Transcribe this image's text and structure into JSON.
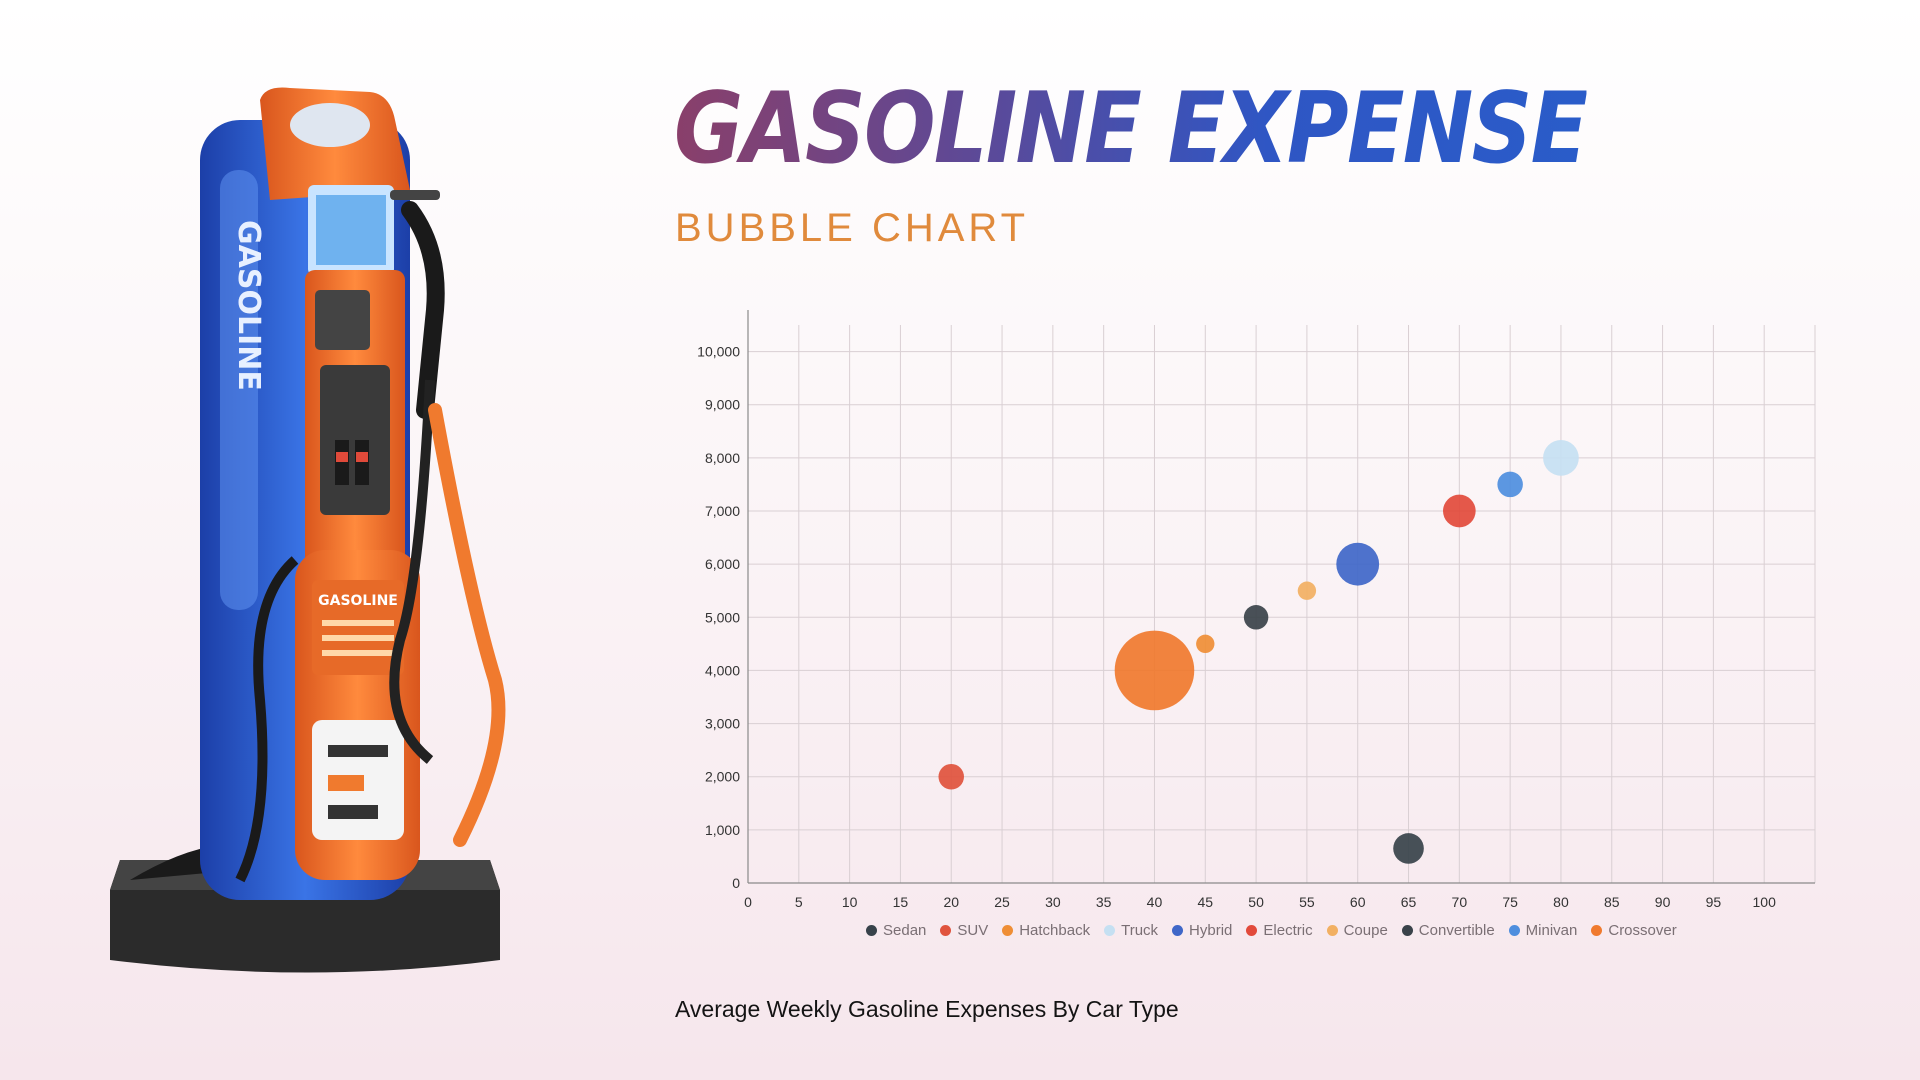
{
  "header": {
    "title": "GASOLINE EXPENSE",
    "subtitle": "BUBBLE CHART"
  },
  "caption": "Average Weekly Gasoline Expenses By Car Type",
  "illustration": {
    "icon": "gas-pump-icon",
    "colors": {
      "body": "#2a5cc9",
      "panel": "#f07a2e",
      "base": "#2b2b2b"
    }
  },
  "chart_data": {
    "type": "scatter",
    "subtype": "bubble",
    "xlim": [
      0,
      105
    ],
    "ylim": [
      0,
      10500
    ],
    "x_ticks": [
      "0",
      "5",
      "10",
      "15",
      "20",
      "25",
      "30",
      "35",
      "40",
      "45",
      "50",
      "55",
      "60",
      "65",
      "70",
      "75",
      "80",
      "85",
      "90",
      "95",
      "100"
    ],
    "y_ticks": [
      "0",
      "1,000",
      "2,000",
      "3,000",
      "4,000",
      "5,000",
      "6,000",
      "7,000",
      "8,000",
      "9,000",
      "10,000"
    ],
    "grid": true,
    "legend_position": "bottom",
    "series": [
      {
        "name": "Sedan",
        "color": "#37424a",
        "x": 65,
        "y": 650,
        "size": 30
      },
      {
        "name": "SUV",
        "color": "#e0533d",
        "x": 20,
        "y": 2000,
        "size": 25
      },
      {
        "name": "Hatchback",
        "color": "#ef8e35",
        "x": 45,
        "y": 4500,
        "size": 18
      },
      {
        "name": "Truck",
        "color": "#c5e0f2",
        "x": 80,
        "y": 8000,
        "size": 35
      },
      {
        "name": "Hybrid",
        "color": "#3f67c8",
        "x": 60,
        "y": 6000,
        "size": 42
      },
      {
        "name": "Electric",
        "color": "#e24a3b",
        "x": 70,
        "y": 7000,
        "size": 32
      },
      {
        "name": "Coupe",
        "color": "#f2b062",
        "x": 55,
        "y": 5500,
        "size": 18
      },
      {
        "name": "Convertible",
        "color": "#394249",
        "x": 50,
        "y": 5000,
        "size": 24
      },
      {
        "name": "Minivan",
        "color": "#4e8ede",
        "x": 75,
        "y": 7500,
        "size": 25
      },
      {
        "name": "Crossover",
        "color": "#f07a2e",
        "x": 40,
        "y": 4000,
        "size": 78
      }
    ]
  }
}
